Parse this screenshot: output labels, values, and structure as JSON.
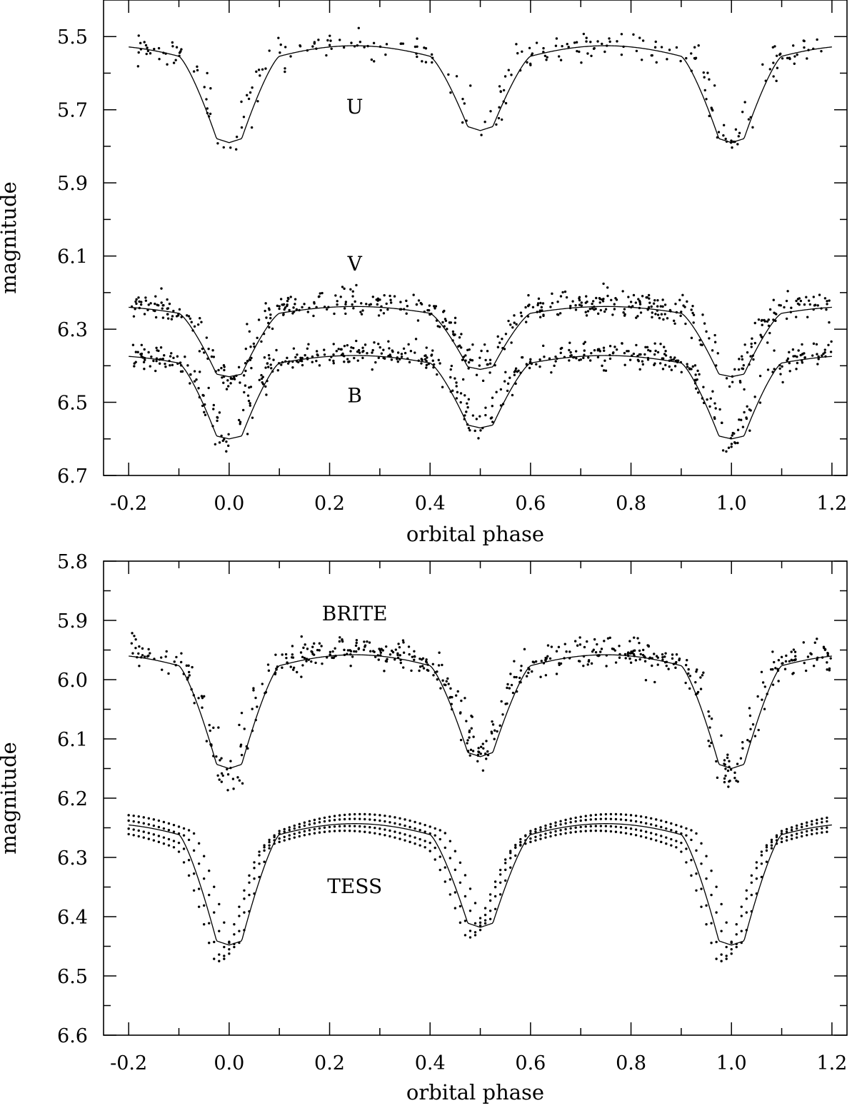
{
  "chart_data": [
    {
      "type": "scatter",
      "title": "",
      "xlabel": "orbital phase",
      "ylabel": "magnitude",
      "xlim": [
        -0.25,
        1.23
      ],
      "ylim": [
        6.7,
        5.4
      ],
      "y_inverted": true,
      "grid": false,
      "x_ticks": [
        -0.2,
        0.0,
        0.2,
        0.4,
        0.6,
        0.8,
        1.0,
        1.2
      ],
      "x_tick_labels": [
        "-0.2",
        "0.0",
        "0.2",
        "0.4",
        "0.6",
        "0.8",
        "1.0",
        "1.2"
      ],
      "y_ticks": [
        5.5,
        5.7,
        5.9,
        6.1,
        6.3,
        6.5,
        6.7
      ],
      "y_tick_labels": [
        "5.5",
        "5.7",
        "5.9",
        "6.1",
        "6.3",
        "6.5",
        "6.7"
      ],
      "series": [
        {
          "name": "U",
          "label_x": 0.25,
          "label_y": 5.71,
          "model": {
            "base": 5.525,
            "primary_depth": 0.265,
            "secondary_depth": 0.232,
            "shoulder": 0.07
          },
          "observations": {
            "base": 5.525,
            "primary_depth": 0.27,
            "secondary_depth": 0.23,
            "scatter": 0.02,
            "count": 260
          }
        },
        {
          "name": "V",
          "label_x": 0.25,
          "label_y": 6.14,
          "model": {
            "base": 6.238,
            "primary_depth": 0.192,
            "secondary_depth": 0.172,
            "shoulder": 0.045
          },
          "observations": {
            "base": 6.225,
            "primary_depth": 0.22,
            "secondary_depth": 0.18,
            "scatter": 0.018,
            "count": 520
          }
        },
        {
          "name": "B",
          "label_x": 0.25,
          "label_y": 6.5,
          "model": {
            "base": 6.372,
            "primary_depth": 0.228,
            "secondary_depth": 0.198,
            "shoulder": 0.05
          },
          "observations": {
            "base": 6.365,
            "primary_depth": 0.25,
            "secondary_depth": 0.2,
            "scatter": 0.018,
            "count": 520
          }
        }
      ]
    },
    {
      "type": "scatter",
      "title": "",
      "xlabel": "orbital phase",
      "ylabel": "magnitude",
      "xlim": [
        -0.25,
        1.23
      ],
      "ylim": [
        6.6,
        5.8
      ],
      "y_inverted": true,
      "grid": false,
      "x_ticks": [
        -0.2,
        0.0,
        0.2,
        0.4,
        0.6,
        0.8,
        1.0,
        1.2
      ],
      "x_tick_labels": [
        "-0.2",
        "0.0",
        "0.2",
        "0.4",
        "0.6",
        "0.8",
        "1.0",
        "1.2"
      ],
      "y_ticks": [
        5.8,
        5.9,
        6.0,
        6.1,
        6.2,
        6.3,
        6.4,
        6.5,
        6.6
      ],
      "y_tick_labels": [
        "5.8",
        "5.9",
        "6.0",
        "6.1",
        "6.2",
        "6.3",
        "6.4",
        "6.5",
        "6.6"
      ],
      "series": [
        {
          "name": "BRITE",
          "label_x": 0.25,
          "label_y": 5.9,
          "model": {
            "base": 5.958,
            "primary_depth": 0.192,
            "secondary_depth": 0.172,
            "shoulder": 0.045
          },
          "observations": {
            "base": 5.95,
            "primary_depth": 0.215,
            "secondary_depth": 0.18,
            "scatter": 0.012,
            "count": 560
          }
        },
        {
          "name": "TESS",
          "label_x": 0.25,
          "label_y": 6.36,
          "model": {
            "base": 6.243,
            "primary_depth": 0.205,
            "secondary_depth": 0.175,
            "shoulder": 0.045
          },
          "observations": {
            "base": 6.235,
            "primary_depth": 0.22,
            "secondary_depth": 0.18,
            "scatter": 0.0,
            "count": 560
          }
        }
      ]
    }
  ]
}
